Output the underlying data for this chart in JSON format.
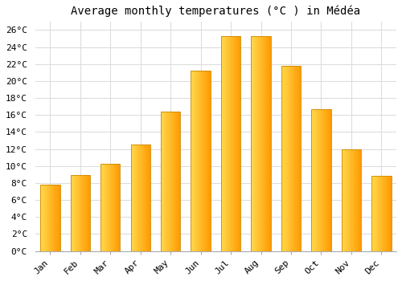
{
  "title": "Average monthly temperatures (°C ) in Médéa",
  "months": [
    "Jan",
    "Feb",
    "Mar",
    "Apr",
    "May",
    "Jun",
    "Jul",
    "Aug",
    "Sep",
    "Oct",
    "Nov",
    "Dec"
  ],
  "temperatures": [
    7.8,
    8.9,
    10.3,
    12.5,
    16.4,
    21.2,
    25.3,
    25.3,
    21.8,
    16.7,
    12.0,
    8.8
  ],
  "bar_color_top": "#FFD966",
  "bar_color_bottom": "#FFA500",
  "bar_color_edge": "#CC8800",
  "ylim": [
    0,
    27
  ],
  "yticks": [
    0,
    2,
    4,
    6,
    8,
    10,
    12,
    14,
    16,
    18,
    20,
    22,
    24,
    26
  ],
  "ytick_labels": [
    "0°C",
    "2°C",
    "4°C",
    "6°C",
    "8°C",
    "10°C",
    "12°C",
    "14°C",
    "16°C",
    "18°C",
    "20°C",
    "22°C",
    "24°C",
    "26°C"
  ],
  "background_color": "#FFFFFF",
  "grid_color": "#DDDDDD",
  "title_fontsize": 10,
  "tick_fontsize": 8,
  "font_family": "monospace"
}
